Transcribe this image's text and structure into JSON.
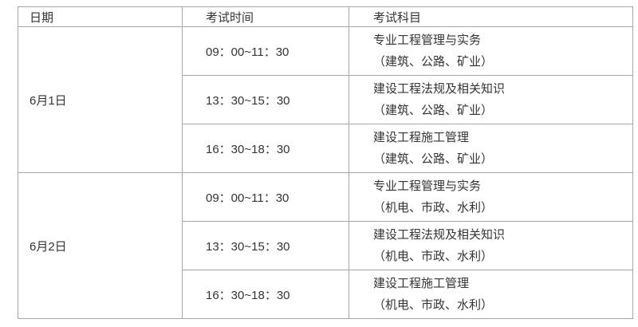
{
  "table": {
    "headers": {
      "date": "日期",
      "time": "考试时间",
      "subject": "考试科目"
    },
    "days": [
      {
        "date": "6月1日",
        "sessions": [
          {
            "time": "09：00~11：30",
            "subject": "专业工程管理与实务",
            "majors": "（建筑、公路、矿业）"
          },
          {
            "time": "13：30~15：30",
            "subject": "建设工程法规及相关知识",
            "majors": "（建筑、公路、矿业）"
          },
          {
            "time": "16：30~18：30",
            "subject": "建设工程施工管理",
            "majors": "（建筑、公路、矿业）"
          }
        ]
      },
      {
        "date": "6月2日",
        "sessions": [
          {
            "time": "09：00~11：30",
            "subject": "专业工程管理与实务",
            "majors": "（机电、市政、水利）"
          },
          {
            "time": "13：30~15：30",
            "subject": "建设工程法规及相关知识",
            "majors": "（机电、市政、水利）"
          },
          {
            "time": "16：30~18：30",
            "subject": "建设工程施工管理",
            "majors": "（机电、市政、水利）"
          }
        ]
      }
    ]
  },
  "colors": {
    "border": "#a6a6a6",
    "text": "#333333",
    "background": "#ffffff"
  }
}
